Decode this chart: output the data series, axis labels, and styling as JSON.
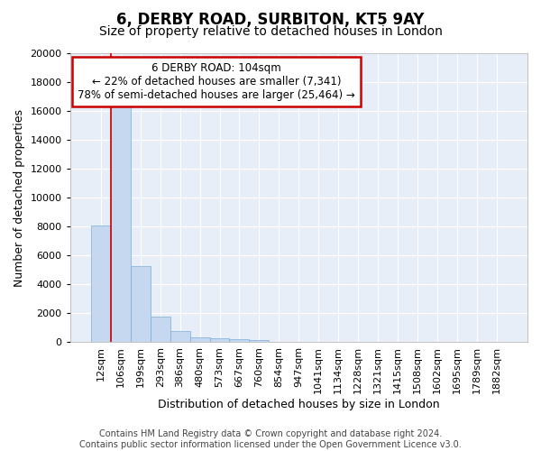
{
  "title": "6, DERBY ROAD, SURBITON, KT5 9AY",
  "subtitle": "Size of property relative to detached houses in London",
  "xlabel": "Distribution of detached houses by size in London",
  "ylabel": "Number of detached properties",
  "categories": [
    "12sqm",
    "106sqm",
    "199sqm",
    "293sqm",
    "386sqm",
    "480sqm",
    "573sqm",
    "667sqm",
    "760sqm",
    "854sqm",
    "947sqm",
    "1041sqm",
    "1134sqm",
    "1228sqm",
    "1321sqm",
    "1415sqm",
    "1508sqm",
    "1602sqm",
    "1695sqm",
    "1789sqm",
    "1882sqm"
  ],
  "values": [
    8100,
    16500,
    5300,
    1750,
    750,
    350,
    270,
    200,
    150,
    0,
    0,
    0,
    0,
    0,
    0,
    0,
    0,
    0,
    0,
    0,
    0
  ],
  "bar_color": "#c5d8f0",
  "bar_edge_color": "#7aadd4",
  "red_line_x": 1.0,
  "annotation_line1": "6 DERBY ROAD: 104sqm",
  "annotation_line2": "← 22% of detached houses are smaller (7,341)",
  "annotation_line3": "78% of semi-detached houses are larger (25,464) →",
  "annotation_box_facecolor": "#ffffff",
  "annotation_box_edgecolor": "#cc0000",
  "ylim": [
    0,
    20000
  ],
  "yticks": [
    0,
    2000,
    4000,
    6000,
    8000,
    10000,
    12000,
    14000,
    16000,
    18000,
    20000
  ],
  "footer_line1": "Contains HM Land Registry data © Crown copyright and database right 2024.",
  "footer_line2": "Contains public sector information licensed under the Open Government Licence v3.0.",
  "fig_facecolor": "#ffffff",
  "ax_facecolor": "#e8eef8",
  "grid_color": "#ffffff",
  "title_fontsize": 12,
  "subtitle_fontsize": 10,
  "ylabel_fontsize": 9,
  "xlabel_fontsize": 9,
  "tick_fontsize": 8,
  "footer_fontsize": 7
}
